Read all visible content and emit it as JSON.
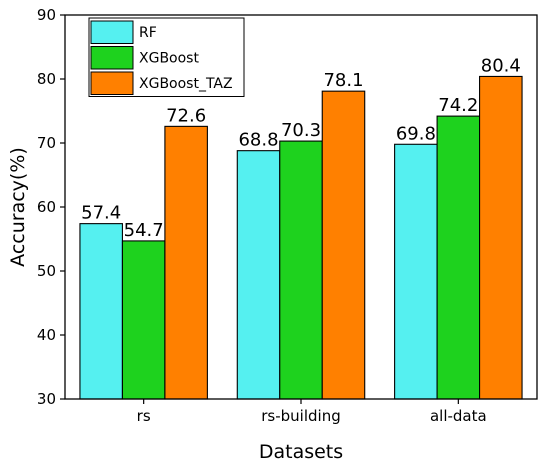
{
  "chart_data": {
    "type": "bar",
    "xlabel": "Datasets",
    "ylabel": "Accuracy(%)",
    "ylim": [
      30,
      90
    ],
    "yticks": [
      30,
      40,
      50,
      60,
      70,
      80,
      90
    ],
    "categories": [
      "rs",
      "rs-building",
      "all-data"
    ],
    "series": [
      {
        "name": "RF",
        "color": "#55f0f0",
        "values": [
          57.4,
          68.8,
          69.8
        ]
      },
      {
        "name": "XGBoost",
        "color": "#1ed21e",
        "values": [
          54.7,
          70.3,
          74.2
        ]
      },
      {
        "name": "XGBoost_TAZ",
        "color": "#ff8000",
        "values": [
          72.6,
          78.1,
          80.4
        ]
      }
    ],
    "legend_position": "top-left",
    "grid": false
  }
}
